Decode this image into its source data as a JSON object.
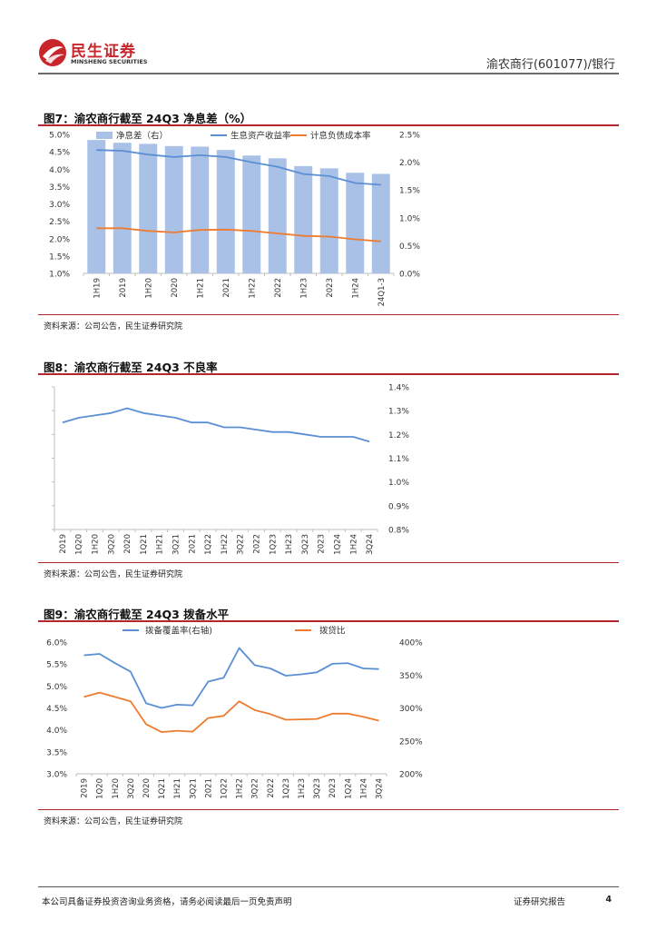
{
  "header": {
    "brand_cn": "民生证券",
    "brand_en": "MINSHENG SECURITIES",
    "right_text": "渝农商行(601077)/银行"
  },
  "figures": [
    {
      "title": "图7：渝农商行截至 24Q3 净息差（%）",
      "source": "资料来源：公司公告，民生证券研究院"
    },
    {
      "title": "图8：渝农商行截至 24Q3 不良率",
      "source": "资料来源：公司公告，民生证券研究院"
    },
    {
      "title": "图9：渝农商行截至 24Q3 拨备水平",
      "source": "资料来源：公司公告，民生证券研究院"
    }
  ],
  "footer": {
    "disclaimer": "本公司具备证券投资咨询业务资格，请务必阅读最后一页免责声明",
    "report_type": "证券研究报告",
    "page": "4"
  },
  "chart_data": [
    {
      "type": "bar",
      "categories": [
        "1H19",
        "2019",
        "1H20",
        "2020",
        "1H21",
        "2021",
        "1H22",
        "2022",
        "1H23",
        "2023",
        "1H24",
        "24Q1-3"
      ],
      "series": [
        {
          "name": "净息差（右）",
          "type": "bar",
          "axis": "right",
          "color": "#a9c1e6",
          "values": [
            2.4,
            2.35,
            2.33,
            2.29,
            2.28,
            2.22,
            2.12,
            2.07,
            1.93,
            1.89,
            1.81,
            1.79
          ]
        },
        {
          "name": "生息资产收益率",
          "type": "line",
          "axis": "left",
          "color": "#5b8fd4",
          "values": [
            4.55,
            4.53,
            4.42,
            4.35,
            4.4,
            4.35,
            4.2,
            4.07,
            3.86,
            3.8,
            3.6,
            3.55
          ]
        },
        {
          "name": "计息负债成本率",
          "type": "line",
          "axis": "left",
          "color": "#ee7b30",
          "values": [
            2.3,
            2.3,
            2.22,
            2.18,
            2.25,
            2.26,
            2.22,
            2.15,
            2.08,
            2.06,
            1.98,
            1.92
          ]
        }
      ],
      "yticks_left": [
        "1.0%",
        "1.5%",
        "2.0%",
        "2.5%",
        "3.0%",
        "3.5%",
        "4.0%",
        "4.5%",
        "5.0%"
      ],
      "yticks_right": [
        "0.0%",
        "0.5%",
        "1.0%",
        "1.5%",
        "2.0%",
        "2.5%"
      ],
      "ylim_left": [
        1.0,
        5.0
      ],
      "ylim_right": [
        0.0,
        2.5
      ],
      "legend": "top"
    },
    {
      "type": "line",
      "categories": [
        "2019",
        "1Q20",
        "1H20",
        "3Q20",
        "2020",
        "1Q21",
        "1H21",
        "3Q21",
        "2021",
        "1Q22",
        "1H22",
        "3Q22",
        "2022",
        "1Q23",
        "1H23",
        "3Q23",
        "2023",
        "1Q24",
        "1H24",
        "3Q24"
      ],
      "series": [
        {
          "name": "不良率",
          "axis": "right",
          "color": "#5b8fd4",
          "values": [
            1.25,
            1.27,
            1.28,
            1.29,
            1.31,
            1.29,
            1.28,
            1.27,
            1.25,
            1.25,
            1.23,
            1.23,
            1.22,
            1.21,
            1.21,
            1.2,
            1.19,
            1.19,
            1.19,
            1.17
          ]
        }
      ],
      "yticks_right": [
        "0.8%",
        "0.9%",
        "1.0%",
        "1.1%",
        "1.2%",
        "1.3%",
        "1.4%"
      ],
      "ylim_right": [
        0.8,
        1.4
      ],
      "legend": "none"
    },
    {
      "type": "line",
      "categories": [
        "2019",
        "1Q20",
        "1H20",
        "3Q20",
        "2020",
        "1Q21",
        "1H21",
        "3Q21",
        "2021",
        "1Q22",
        "1H22",
        "3Q22",
        "2022",
        "1Q23",
        "1H23",
        "3Q23",
        "2023",
        "1Q24",
        "1H24",
        "3Q24"
      ],
      "series": [
        {
          "name": "拨备覆盖率(右轴)",
          "axis": "right",
          "color": "#5b8fd4",
          "values": [
            380,
            382,
            368,
            355,
            307,
            300,
            305,
            304,
            340,
            346,
            391,
            365,
            360,
            349,
            351,
            354,
            367,
            368,
            360,
            359
          ]
        },
        {
          "name": "拨贷比",
          "axis": "left",
          "color": "#ee7b30",
          "values": [
            4.75,
            4.85,
            4.75,
            4.65,
            4.13,
            3.95,
            3.98,
            3.96,
            4.27,
            4.32,
            4.65,
            4.45,
            4.36,
            4.23,
            4.24,
            4.25,
            4.37,
            4.37,
            4.3,
            4.21
          ]
        }
      ],
      "yticks_left": [
        "3.0%",
        "3.5%",
        "4.0%",
        "4.5%",
        "5.0%",
        "5.5%",
        "6.0%"
      ],
      "yticks_right": [
        "200%",
        "250%",
        "300%",
        "350%",
        "400%"
      ],
      "ylim_left": [
        3.0,
        6.0
      ],
      "ylim_right": [
        200,
        400
      ],
      "legend": "top"
    }
  ]
}
